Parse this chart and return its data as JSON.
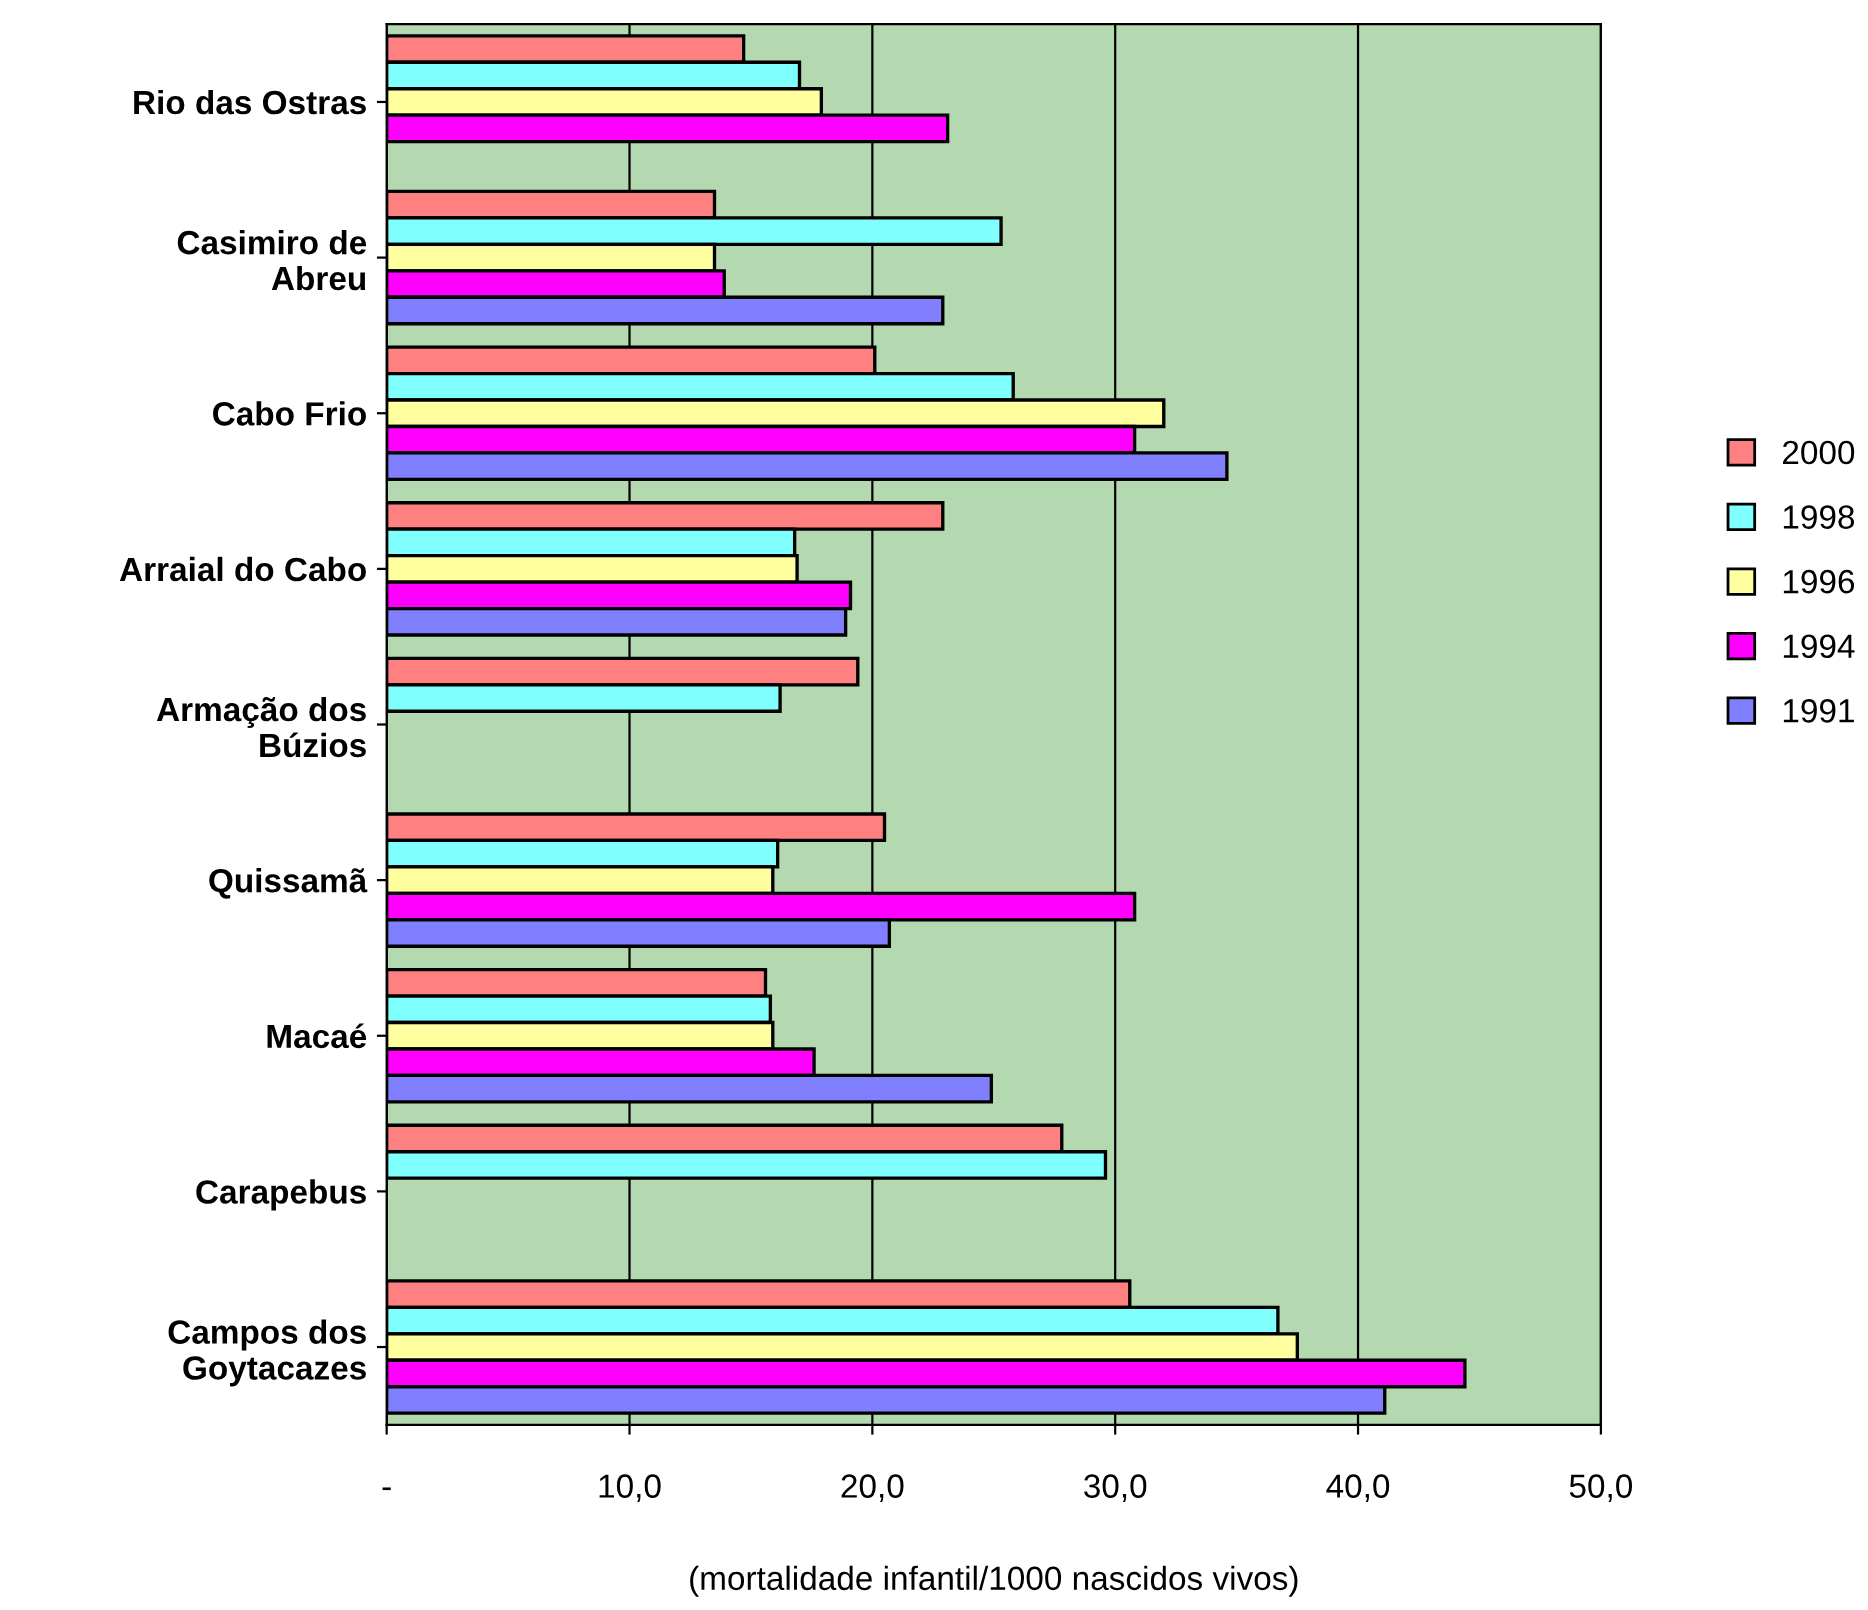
{
  "chart_data": {
    "type": "bar",
    "orientation": "horizontal",
    "xlabel": "(mortalidade infantil/1000 nascidos vivos)",
    "categories": [
      "Rio das Ostras",
      "Casimiro de\nAbreu",
      "Cabo Frio",
      "Arraial do Cabo",
      "Armação dos\nBúzios",
      "Quissamã",
      "Macaé",
      "Carapebus",
      "Campos dos\nGoytacazes"
    ],
    "series": [
      {
        "name": "2000",
        "color": "#ff8080",
        "values": [
          14.7,
          13.5,
          20.1,
          22.9,
          19.4,
          20.5,
          15.6,
          27.8,
          30.6
        ]
      },
      {
        "name": "1998",
        "color": "#80ffff",
        "values": [
          17.0,
          25.3,
          25.8,
          16.8,
          16.2,
          16.1,
          15.8,
          29.6,
          36.7
        ]
      },
      {
        "name": "1996",
        "color": "#ffffa0",
        "values": [
          17.9,
          13.5,
          32.0,
          16.9,
          null,
          15.9,
          15.9,
          null,
          37.5
        ]
      },
      {
        "name": "1994",
        "color": "#ff00ff",
        "values": [
          23.1,
          13.9,
          30.8,
          19.1,
          null,
          30.8,
          17.6,
          null,
          44.4
        ]
      },
      {
        "name": "1991",
        "color": "#8080ff",
        "values": [
          null,
          22.9,
          34.6,
          18.9,
          null,
          20.7,
          24.9,
          null,
          41.1
        ]
      }
    ],
    "xlim": [
      0,
      50
    ],
    "xticks": [
      {
        "value": 0,
        "label": "-"
      },
      {
        "value": 10,
        "label": "10,0"
      },
      {
        "value": 20,
        "label": "20,0"
      },
      {
        "value": 30,
        "label": "30,0"
      },
      {
        "value": 40,
        "label": "40,0"
      },
      {
        "value": 50,
        "label": "50,0"
      }
    ],
    "grid": "x",
    "legend": "right"
  }
}
